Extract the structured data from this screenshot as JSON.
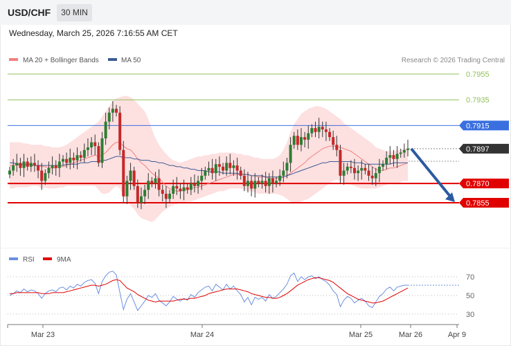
{
  "header": {
    "symbol": "USD/CHF",
    "timeframe": "30 MIN",
    "datetime": "Wednesday, March 25, 2026 7:16:55 AM CET"
  },
  "legend": {
    "ma20": "MA 20 + Bollinger Bands",
    "ma50": "MA 50",
    "credit": "Research © 2026 Trading Central",
    "rsi": "RSI",
    "ma9": "9MA"
  },
  "colors": {
    "ma20": "#f08080",
    "ma50": "#3b5b95",
    "band_fill": "#fde0e0",
    "up_candle": "#2e7d32",
    "down_candle": "#c62828",
    "support": "#e00000",
    "resistance": "#8fbf5a",
    "pivot_blue": "#3a6fe0",
    "last_price": "#333333",
    "rsi_line": "#6a8fe0",
    "rsi_ma": "#e00000",
    "arrow": "#2c5aa0"
  },
  "chart_data": [
    {
      "type": "candlestick",
      "title": "USD/CHF 30 MIN",
      "x_ticks": [
        "Mar 23",
        "Mar 24",
        "Mar 25",
        "Mar 26",
        "Apr 9"
      ],
      "ylim": [
        0.7835,
        0.7965
      ],
      "levels": [
        {
          "value": 0.7955,
          "label": "0.7955",
          "kind": "resistance"
        },
        {
          "value": 0.7935,
          "label": "0.7935",
          "kind": "resistance"
        },
        {
          "value": 0.7915,
          "label": "0.7915",
          "kind": "pivot"
        },
        {
          "value": 0.7897,
          "label": "0.7897",
          "kind": "last"
        },
        {
          "value": 0.787,
          "label": "0.7870",
          "kind": "support"
        },
        {
          "value": 0.7855,
          "label": "0.7855",
          "kind": "support"
        }
      ],
      "close": [
        0.788,
        0.7884,
        0.7886,
        0.7882,
        0.7887,
        0.7883,
        0.7886,
        0.7884,
        0.788,
        0.7872,
        0.7878,
        0.7882,
        0.7884,
        0.7882,
        0.7887,
        0.7889,
        0.7886,
        0.789,
        0.7888,
        0.7892,
        0.789,
        0.7896,
        0.7898,
        0.7902,
        0.7899,
        0.7886,
        0.7905,
        0.7918,
        0.7925,
        0.7928,
        0.7925,
        0.7896,
        0.786,
        0.7872,
        0.788,
        0.7868,
        0.7855,
        0.786,
        0.7865,
        0.7872,
        0.787,
        0.7874,
        0.7865,
        0.7862,
        0.7858,
        0.7862,
        0.7868,
        0.7866,
        0.7864,
        0.7867,
        0.7865,
        0.787,
        0.7868,
        0.7872,
        0.7876,
        0.788,
        0.7882,
        0.7878,
        0.7885,
        0.7883,
        0.788,
        0.7886,
        0.7882,
        0.7884,
        0.788,
        0.7876,
        0.7868,
        0.7872,
        0.7866,
        0.7872,
        0.787,
        0.7872,
        0.7868,
        0.7874,
        0.787,
        0.7872,
        0.7876,
        0.788,
        0.7886,
        0.79,
        0.7907,
        0.79,
        0.7906,
        0.7904,
        0.7909,
        0.7913,
        0.791,
        0.7914,
        0.7912,
        0.791,
        0.7906,
        0.79,
        0.7896,
        0.7876,
        0.788,
        0.7883,
        0.7882,
        0.7878,
        0.788,
        0.7882,
        0.788,
        0.7876,
        0.7874,
        0.7878,
        0.7883,
        0.7885,
        0.789,
        0.7892,
        0.7889,
        0.7893,
        0.7894,
        0.7896,
        0.7897
      ],
      "ma20": [
        0.7884,
        0.7884,
        0.7885,
        0.7884,
        0.7884,
        0.7884,
        0.7884,
        0.7884,
        0.7884,
        0.7883,
        0.7883,
        0.7882,
        0.7882,
        0.7882,
        0.7883,
        0.7883,
        0.7884,
        0.7885,
        0.7886,
        0.7887,
        0.7888,
        0.7889,
        0.789,
        0.7891,
        0.7892,
        0.7891,
        0.7892,
        0.7894,
        0.7897,
        0.79,
        0.7902,
        0.7902,
        0.7899,
        0.7897,
        0.7896,
        0.7893,
        0.7889,
        0.7886,
        0.7884,
        0.7881,
        0.7878,
        0.7876,
        0.7874,
        0.7871,
        0.7868,
        0.7866,
        0.7865,
        0.7864,
        0.7864,
        0.7865,
        0.7866,
        0.7866,
        0.7867,
        0.7867,
        0.7868,
        0.7869,
        0.787,
        0.7871,
        0.7872,
        0.7873,
        0.7874,
        0.7875,
        0.7876,
        0.7877,
        0.7877,
        0.7877,
        0.7877,
        0.7877,
        0.7876,
        0.7876,
        0.7875,
        0.7875,
        0.7875,
        0.7874,
        0.7874,
        0.7874,
        0.7874,
        0.7875,
        0.7876,
        0.7878,
        0.788,
        0.7882,
        0.7884,
        0.7886,
        0.7889,
        0.7891,
        0.7893,
        0.7895,
        0.7897,
        0.7898,
        0.7899,
        0.7899,
        0.7899,
        0.7898,
        0.7897,
        0.7896,
        0.7895,
        0.7893,
        0.7891,
        0.7889,
        0.7887,
        0.7885,
        0.7883,
        0.7881,
        0.788,
        0.788,
        0.7881,
        0.7882,
        0.7882,
        0.7883,
        0.7884,
        0.7885,
        0.7886
      ],
      "ma50": [
        0.7886,
        0.7886,
        0.7885,
        0.7885,
        0.7885,
        0.7885,
        0.7885,
        0.7884,
        0.7884,
        0.7884,
        0.7884,
        0.7884,
        0.7884,
        0.7884,
        0.7884,
        0.7884,
        0.7885,
        0.7885,
        0.7885,
        0.7885,
        0.7886,
        0.7886,
        0.7886,
        0.7887,
        0.7887,
        0.7887,
        0.7888,
        0.7888,
        0.7889,
        0.789,
        0.7891,
        0.7891,
        0.789,
        0.789,
        0.789,
        0.7889,
        0.7889,
        0.7888,
        0.7888,
        0.7888,
        0.7887,
        0.7887,
        0.7886,
        0.7886,
        0.7885,
        0.7884,
        0.7884,
        0.7883,
        0.7883,
        0.7882,
        0.7882,
        0.7881,
        0.7881,
        0.788,
        0.788,
        0.788,
        0.7879,
        0.7879,
        0.7879,
        0.7879,
        0.7878,
        0.7878,
        0.7878,
        0.7878,
        0.7878,
        0.7877,
        0.7877,
        0.7877,
        0.7876,
        0.7876,
        0.7876,
        0.7876,
        0.7875,
        0.7875,
        0.7875,
        0.7875,
        0.7875,
        0.7875,
        0.7876,
        0.7877,
        0.7878,
        0.7879,
        0.788,
        0.7881,
        0.7882,
        0.7883,
        0.7884,
        0.7885,
        0.7886,
        0.7886,
        0.7887,
        0.7887,
        0.7887,
        0.7887,
        0.7887,
        0.7887,
        0.7887,
        0.7886,
        0.7886,
        0.7886,
        0.7885,
        0.7885,
        0.7885,
        0.7885,
        0.7885,
        0.7885,
        0.7885,
        0.7885,
        0.7886,
        0.7886,
        0.7886,
        0.7886,
        0.7886
      ],
      "bb_upper": [
        0.7902,
        0.7902,
        0.7902,
        0.7902,
        0.7901,
        0.7901,
        0.79,
        0.79,
        0.79,
        0.79,
        0.7899,
        0.7899,
        0.7898,
        0.7898,
        0.7898,
        0.7899,
        0.79,
        0.7902,
        0.7904,
        0.7906,
        0.7908,
        0.791,
        0.7912,
        0.7914,
        0.7916,
        0.7918,
        0.7922,
        0.7926,
        0.793,
        0.7934,
        0.7936,
        0.7937,
        0.7938,
        0.7938,
        0.7937,
        0.7935,
        0.7932,
        0.7929,
        0.7926,
        0.792,
        0.7912,
        0.7905,
        0.79,
        0.7896,
        0.7893,
        0.789,
        0.7888,
        0.7887,
        0.7886,
        0.7887,
        0.7888,
        0.7889,
        0.789,
        0.7891,
        0.7891,
        0.7892,
        0.7892,
        0.7893,
        0.7893,
        0.7894,
        0.7894,
        0.7894,
        0.7894,
        0.7894,
        0.7893,
        0.7893,
        0.7892,
        0.7892,
        0.7891,
        0.789,
        0.789,
        0.7889,
        0.7889,
        0.7889,
        0.7889,
        0.789,
        0.7892,
        0.7896,
        0.7902,
        0.791,
        0.7916,
        0.792,
        0.7924,
        0.7926,
        0.7928,
        0.7929,
        0.793,
        0.793,
        0.7929,
        0.7928,
        0.7926,
        0.7924,
        0.7922,
        0.792,
        0.7917,
        0.7915,
        0.7913,
        0.7911,
        0.7909,
        0.7907,
        0.7905,
        0.7903,
        0.7901,
        0.7898,
        0.7897,
        0.7896,
        0.7895,
        0.7895,
        0.7895,
        0.7896,
        0.7896,
        0.7897,
        0.7898
      ],
      "bb_lower": [
        0.7866,
        0.7866,
        0.7867,
        0.7867,
        0.7867,
        0.7867,
        0.7868,
        0.7868,
        0.7868,
        0.7866,
        0.7867,
        0.7866,
        0.7866,
        0.7866,
        0.7867,
        0.7867,
        0.7868,
        0.7868,
        0.7868,
        0.7868,
        0.7868,
        0.7868,
        0.7868,
        0.7868,
        0.7868,
        0.7865,
        0.7862,
        0.7862,
        0.7863,
        0.7866,
        0.7868,
        0.7866,
        0.786,
        0.7856,
        0.7853,
        0.785,
        0.7846,
        0.7843,
        0.7842,
        0.7841,
        0.784,
        0.7842,
        0.7845,
        0.7848,
        0.785,
        0.7852,
        0.7853,
        0.7854,
        0.7855,
        0.7855,
        0.7856,
        0.7856,
        0.7857,
        0.7858,
        0.7859,
        0.786,
        0.7861,
        0.7862,
        0.7863,
        0.7864,
        0.7864,
        0.7865,
        0.7866,
        0.7866,
        0.7866,
        0.7866,
        0.7865,
        0.7864,
        0.7864,
        0.7863,
        0.7862,
        0.7862,
        0.7862,
        0.7862,
        0.7862,
        0.7862,
        0.7861,
        0.786,
        0.7858,
        0.7856,
        0.7855,
        0.7855,
        0.7856,
        0.7857,
        0.7858,
        0.786,
        0.7862,
        0.7864,
        0.7866,
        0.7868,
        0.787,
        0.7872,
        0.7873,
        0.7872,
        0.7871,
        0.787,
        0.7869,
        0.7868,
        0.7867,
        0.7866,
        0.7866,
        0.7866,
        0.7866,
        0.7866,
        0.7867,
        0.7868,
        0.7869,
        0.787,
        0.787,
        0.787,
        0.7871,
        0.7872,
        0.7872
      ],
      "forecast": {
        "from": 0.7897,
        "to": 0.7855
      }
    },
    {
      "type": "line",
      "title": "RSI",
      "ylim": [
        20,
        80
      ],
      "y_ticks": [
        30,
        50,
        70
      ],
      "series": [
        {
          "name": "RSI",
          "values": [
            50,
            52,
            55,
            53,
            57,
            54,
            56,
            55,
            52,
            47,
            52,
            55,
            56,
            54,
            58,
            59,
            56,
            60,
            58,
            62,
            60,
            64,
            66,
            67,
            63,
            52,
            65,
            71,
            75,
            76,
            72,
            53,
            35,
            46,
            52,
            43,
            34,
            39,
            44,
            50,
            48,
            52,
            45,
            42,
            39,
            43,
            49,
            46,
            44,
            47,
            45,
            51,
            48,
            53,
            56,
            59,
            60,
            55,
            62,
            59,
            56,
            62,
            57,
            60,
            55,
            51,
            43,
            48,
            40,
            48,
            46,
            48,
            44,
            51,
            47,
            49,
            53,
            57,
            62,
            71,
            74,
            65,
            70,
            67,
            70,
            71,
            68,
            70,
            67,
            65,
            61,
            55,
            51,
            38,
            45,
            49,
            47,
            42,
            45,
            47,
            44,
            39,
            37,
            43,
            49,
            52,
            57,
            59,
            55,
            59,
            60,
            61,
            61
          ]
        },
        {
          "name": "9MA",
          "values": [
            52,
            52,
            53,
            53,
            53,
            53,
            53,
            53,
            53,
            52,
            52,
            52,
            53,
            53,
            53,
            53,
            54,
            55,
            56,
            57,
            58,
            59,
            60,
            61,
            61,
            60,
            61,
            62,
            64,
            66,
            67,
            66,
            62,
            58,
            56,
            54,
            51,
            49,
            47,
            45,
            44,
            43,
            44,
            44,
            44,
            44,
            44,
            45,
            46,
            46,
            46,
            47,
            47,
            48,
            49,
            50,
            52,
            53,
            54,
            55,
            56,
            57,
            57,
            57,
            57,
            56,
            55,
            54,
            52,
            51,
            50,
            49,
            48,
            48,
            47,
            47,
            48,
            50,
            52,
            55,
            58,
            61,
            63,
            65,
            67,
            68,
            69,
            69,
            68,
            67,
            66,
            64,
            61,
            58,
            55,
            52,
            50,
            48,
            46,
            45,
            44,
            43,
            42,
            42,
            43,
            44,
            46,
            48,
            50,
            52,
            54,
            56,
            58
          ]
        }
      ]
    }
  ]
}
